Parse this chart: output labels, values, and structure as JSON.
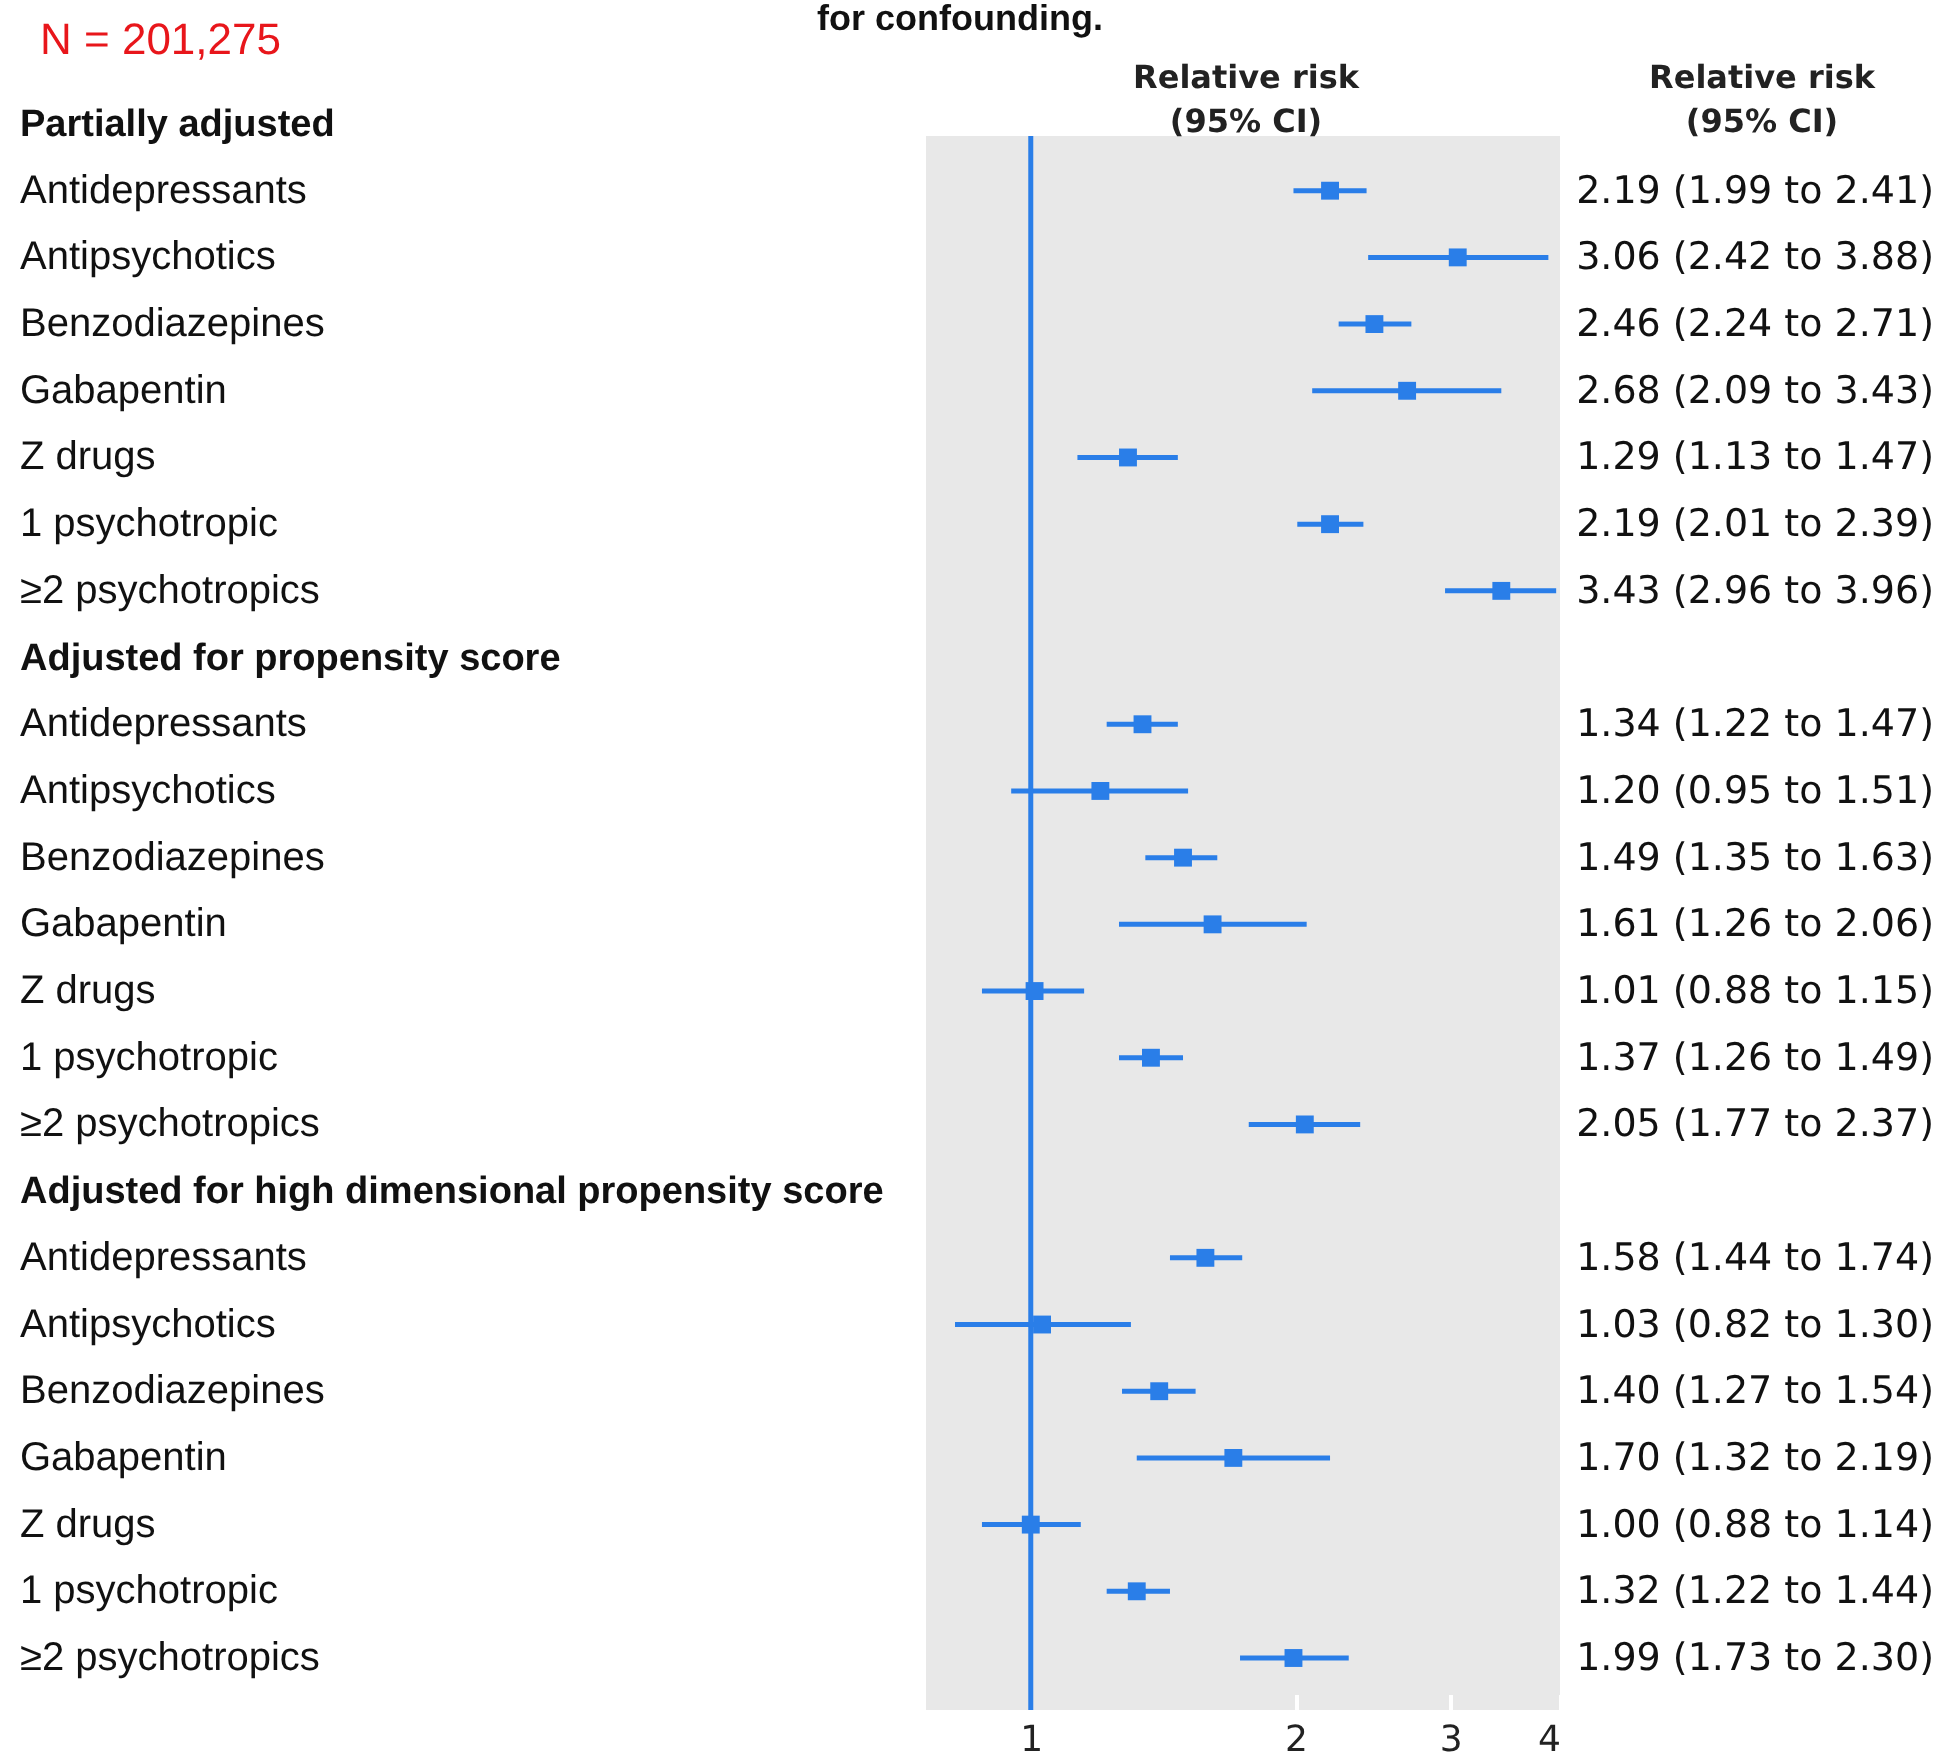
{
  "chart_data": {
    "type": "scatter",
    "orientation": "horizontal",
    "title": "for confounding.",
    "annotations": [
      "N = 201,275",
      "Relative risk\n(95% CI)",
      "Relative risk\n(95% CI)"
    ],
    "categories": [
      "Partially adjusted",
      "Antidepressants",
      "Antipsychotics",
      "Benzodiazepines",
      "Gabapentin",
      "Z drugs",
      "1 psychotropic",
      "≥2 psychotropics",
      "Adjusted for propensity score",
      "Antidepressants",
      "Antipsychotics",
      "Benzodiazepines",
      "Gabapentin",
      "Z drugs",
      "1 psychotropic",
      "≥2 psychotropics",
      "Adjusted for high dimensional propensity score",
      "Antidepressants",
      "Antipsychotics",
      "Benzodiazepines",
      "Gabapentin",
      "Z drugs",
      "1 psychotropic",
      "≥2 psychotropics"
    ],
    "series": [
      {
        "color": "#2a7ee8",
        "values": [
          null,
          2.19,
          3.06,
          2.46,
          2.68,
          1.29,
          2.19,
          3.43,
          null,
          1.34,
          1.2,
          1.49,
          1.61,
          1.01,
          1.37,
          2.05,
          null,
          1.58,
          1.03,
          1.4,
          1.7,
          1.0,
          1.32,
          1.99
        ],
        "errors": [
          null,
          [
            1.99,
            2.41
          ],
          [
            2.42,
            3.88
          ],
          [
            2.24,
            2.71
          ],
          [
            2.09,
            3.43
          ],
          [
            1.13,
            1.47
          ],
          [
            2.01,
            2.39
          ],
          [
            2.96,
            3.96
          ],
          null,
          [
            1.22,
            1.47
          ],
          [
            0.95,
            1.51
          ],
          [
            1.35,
            1.63
          ],
          [
            1.26,
            2.06
          ],
          [
            0.88,
            1.15
          ],
          [
            1.26,
            1.49
          ],
          [
            1.77,
            2.37
          ],
          null,
          [
            1.44,
            1.74
          ],
          [
            0.82,
            1.3
          ],
          [
            1.27,
            1.54
          ],
          [
            1.32,
            2.19
          ],
          [
            0.88,
            1.14
          ],
          [
            1.22,
            1.44
          ],
          [
            1.73,
            2.3
          ]
        ],
        "value_labels": [
          null,
          "2.19 (1.99 to 2.41)",
          "3.06 (2.42 to 3.88)",
          "2.46 (2.24 to 2.71)",
          "2.68 (2.09 to 3.43)",
          "1.29 (1.13 to 1.47)",
          "2.19 (2.01 to 2.39)",
          "3.43 (2.96 to 3.96)",
          null,
          "1.34 (1.22 to 1.47)",
          "1.20 (0.95 to 1.51)",
          "1.49 (1.35 to 1.63)",
          "1.61 (1.26 to 2.06)",
          "1.01 (0.88 to 1.15)",
          "1.37 (1.26 to 1.49)",
          "2.05 (1.77 to 2.37)",
          null,
          "1.58 (1.44 to 1.74)",
          "1.03 (0.82 to 1.30)",
          "1.40 (1.27 to 1.54)",
          "1.70 (1.32 to 2.19)",
          "1.00 (0.88 to 1.14)",
          "1.32 (1.22 to 1.44)",
          "1.99 (1.73 to 2.30)"
        ]
      }
    ],
    "log": "x",
    "xlim": [
      0.76,
      4
    ],
    "xticks": [
      1,
      2,
      3,
      4
    ],
    "grid": false,
    "legend": false,
    "marker": "square",
    "ref_lines": [
      {
        "axis": "x",
        "value": 1,
        "color": "#2a7ee8"
      }
    ]
  }
}
